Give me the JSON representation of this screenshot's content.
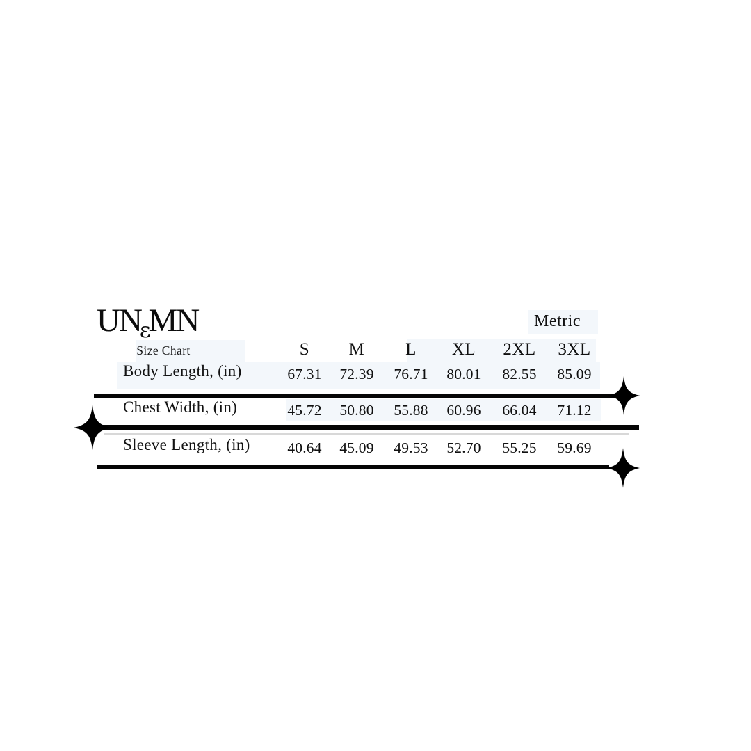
{
  "brand": {
    "prefix": "UN",
    "amp": "ɛ",
    "suffix": "MN"
  },
  "chart_data": {
    "type": "table",
    "title": "Size Chart",
    "unit_label": "Metric",
    "columns": [
      "S",
      "M",
      "L",
      "XL",
      "2XL",
      "3XL"
    ],
    "rows": [
      {
        "label": "Body Length, (in)",
        "values": [
          "67.31",
          "72.39",
          "76.71",
          "80.01",
          "82.55",
          "85.09"
        ]
      },
      {
        "label": "Chest Width, (in)",
        "values": [
          "45.72",
          "50.80",
          "55.88",
          "60.96",
          "66.04",
          "71.12"
        ]
      },
      {
        "label": "Sleeve Length, (in)",
        "values": [
          "40.64",
          "45.09",
          "49.53",
          "52.70",
          "55.25",
          "59.69"
        ]
      }
    ]
  },
  "decorations": {
    "sparkle_color": "#000000",
    "rule_color": "#050505",
    "faint_rule_color": "#d8d8d8"
  }
}
